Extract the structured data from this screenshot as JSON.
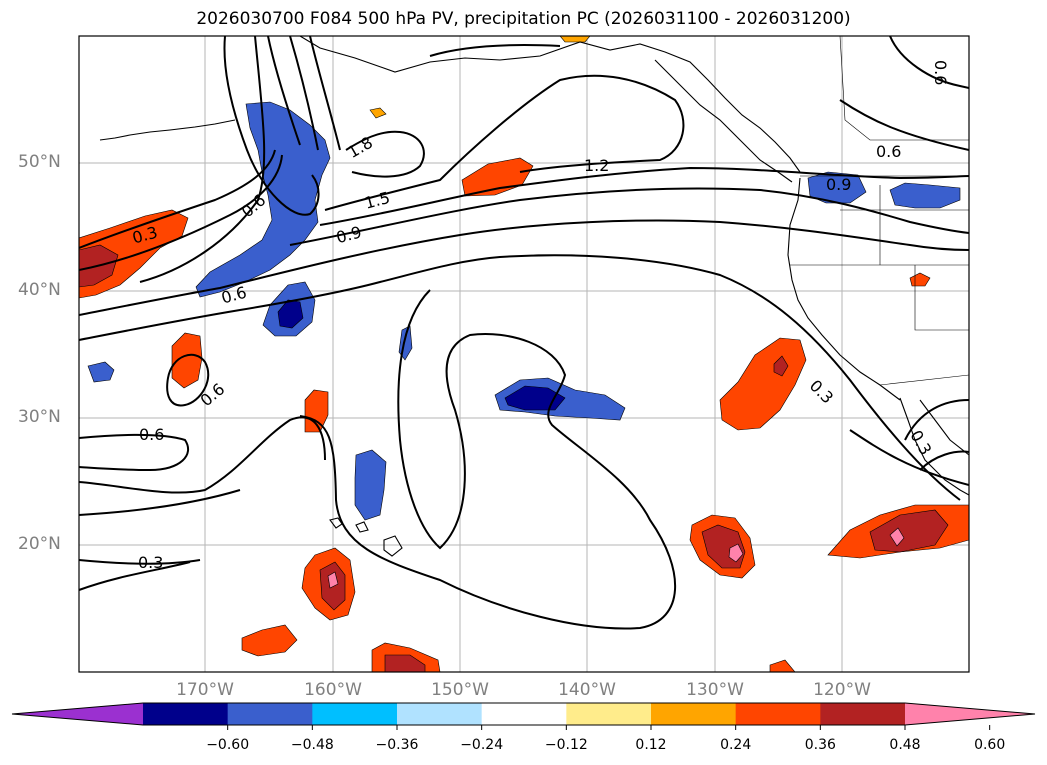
{
  "title": "2026030700 F084 500 hPa PV, precipitation PC (2026031100 - 2026031200)",
  "lat_labels": [
    "50°N",
    "40°N",
    "30°N",
    "20°N"
  ],
  "lon_labels": [
    "170°W",
    "160°W",
    "150°W",
    "140°W",
    "130°W",
    "120°W"
  ],
  "contour_labels": [
    "1.8",
    "1.5",
    "1.2",
    "0.9",
    "0.6",
    "0.3",
    "0.6",
    "0.6",
    "0.6",
    "0.3",
    "0.6",
    "0.9",
    "0.3",
    "0.3",
    "0.6"
  ],
  "colorbar": {
    "ticks": [
      "−0.60",
      "−0.48",
      "−0.36",
      "−0.24",
      "−0.12",
      "0.12",
      "0.24",
      "0.36",
      "0.48",
      "0.60"
    ],
    "colors": [
      "#9b30d0",
      "#00008b",
      "#3a5fcd",
      "#00bfff",
      "#b0e2ff",
      "#ffffff",
      "#ffec8b",
      "#ffa500",
      "#ff4500",
      "#b22222",
      "#ff82ab"
    ]
  },
  "palette": {
    "neg_strong": "#00008b",
    "neg": "#3a5fcd",
    "neg_light": "#00bfff",
    "pos_light": "#ffec8b",
    "pos": "#ff4500",
    "pos_mid": "#b22222",
    "pos_strong": "#ff82ab"
  }
}
